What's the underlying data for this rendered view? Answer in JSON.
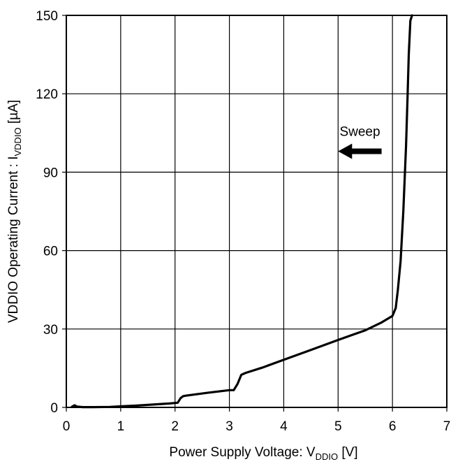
{
  "chart_data": {
    "type": "line",
    "xlabel": {
      "main": "Power Supply Voltage: V",
      "sub": "DDIO",
      "unit": " [V]"
    },
    "ylabel": {
      "main": "VDDIO Operating Current : I",
      "sub": "VDDIO",
      "unit": " [µA]"
    },
    "xlim": [
      0,
      7
    ],
    "ylim": [
      0,
      150
    ],
    "x_ticks": [
      0,
      1,
      2,
      3,
      4,
      5,
      6,
      7
    ],
    "y_ticks": [
      0,
      30,
      60,
      90,
      120,
      150
    ],
    "x_tick_labels": [
      "0",
      "1",
      "2",
      "3",
      "4",
      "5",
      "6",
      "7"
    ],
    "y_tick_labels": [
      "0",
      "30",
      "60",
      "90",
      "120",
      "150"
    ],
    "grid": true,
    "annotation": {
      "text": "Sweep",
      "arrow": "left",
      "x": 5.8,
      "y": 98,
      "arrow_from_x": 5.8,
      "arrow_to_x": 5.0,
      "arrow_y": 98
    },
    "series": [
      {
        "color": "#000000",
        "x": [
          0.1,
          0.15,
          0.2,
          0.3,
          0.5,
          0.8,
          1.0,
          1.3,
          1.6,
          1.9,
          2.05,
          2.1,
          2.15,
          2.2,
          2.6,
          3.0,
          3.08,
          3.15,
          3.22,
          3.3,
          3.6,
          4.0,
          4.5,
          5.0,
          5.5,
          5.8,
          6.0,
          6.06,
          6.1,
          6.15,
          6.2,
          6.25,
          6.28,
          6.3,
          6.33,
          6.36
        ],
        "y": [
          0.2,
          0.8,
          0.3,
          0.1,
          0.1,
          0.2,
          0.4,
          0.7,
          1.1,
          1.5,
          1.8,
          3.5,
          4.3,
          4.5,
          5.6,
          6.6,
          6.6,
          9.0,
          12.5,
          13.2,
          15.2,
          18.2,
          22.0,
          25.8,
          29.5,
          32.5,
          35.0,
          38.0,
          45.0,
          56.0,
          75.0,
          100.0,
          120.0,
          135.0,
          148.0,
          150.0
        ]
      }
    ]
  }
}
